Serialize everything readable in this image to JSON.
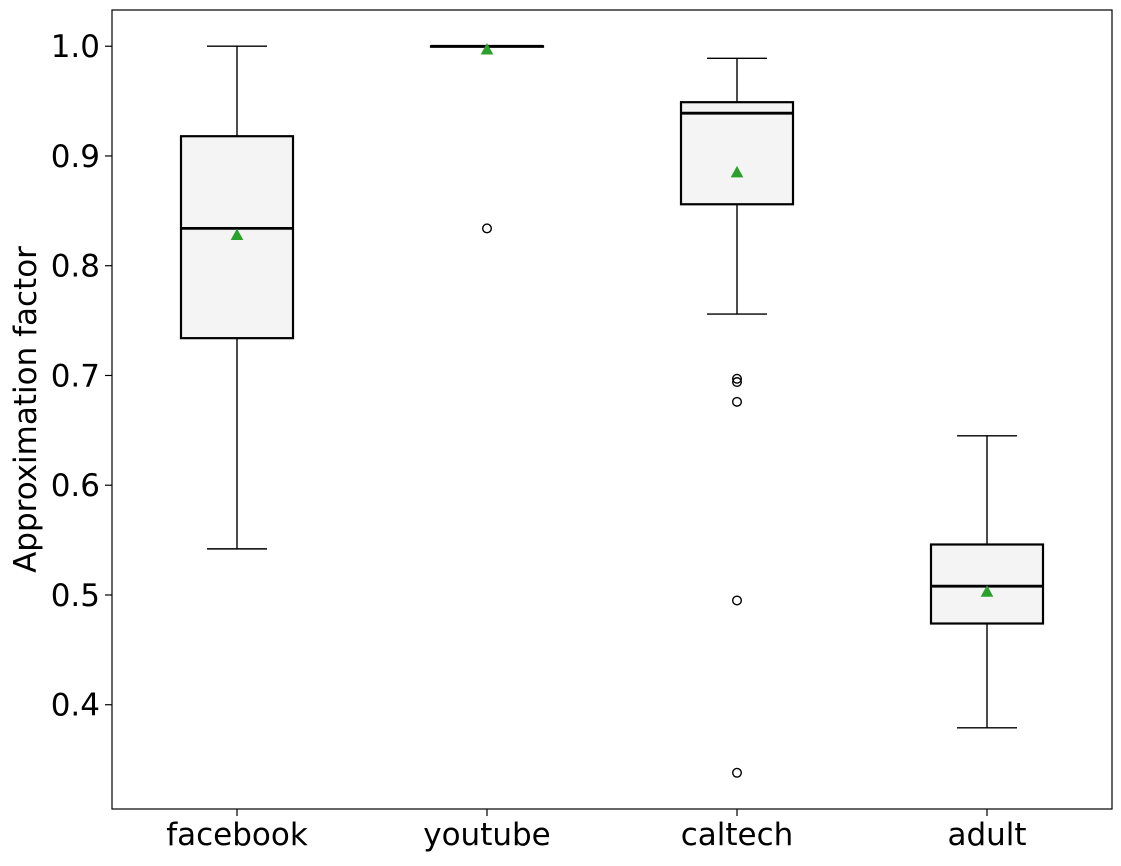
{
  "chart_data": {
    "type": "box",
    "title": "",
    "xlabel": "",
    "ylabel": "Approximation factor",
    "ylim": [
      0.305,
      1.033
    ],
    "yticks": [
      0.4,
      0.5,
      0.6,
      0.7,
      0.8,
      0.9,
      1.0
    ],
    "ytick_labels": [
      "0.4",
      "0.5",
      "0.6",
      "0.7",
      "0.8",
      "0.9",
      "1.0"
    ],
    "grid": false,
    "legend": "none",
    "categories": [
      "facebook",
      "youtube",
      "caltech",
      "adult"
    ],
    "boxes": [
      {
        "category": "facebook",
        "whisker_low": 0.542,
        "q1": 0.734,
        "median": 0.834,
        "q3": 0.918,
        "whisker_high": 1.0,
        "mean": 0.828,
        "outliers": []
      },
      {
        "category": "youtube",
        "whisker_low": 1.0,
        "q1": 1.0,
        "median": 1.0,
        "q3": 1.0,
        "whisker_high": 1.0,
        "mean": 0.997,
        "outliers": [
          0.834
        ]
      },
      {
        "category": "caltech",
        "whisker_low": 0.756,
        "q1": 0.856,
        "median": 0.939,
        "q3": 0.949,
        "whisker_high": 0.989,
        "mean": 0.885,
        "outliers": [
          0.697,
          0.694,
          0.676,
          0.495,
          0.338
        ]
      },
      {
        "category": "adult",
        "whisker_low": 0.379,
        "q1": 0.474,
        "median": 0.508,
        "q3": 0.546,
        "whisker_high": 0.645,
        "mean": 0.503,
        "outliers": []
      }
    ],
    "colors": {
      "box_fill": "#f4f4f4",
      "box_edge": "#000000",
      "median": "#000000",
      "whisker": "#000000",
      "mean_marker": "#2ca02c",
      "outlier": "#000000"
    }
  }
}
